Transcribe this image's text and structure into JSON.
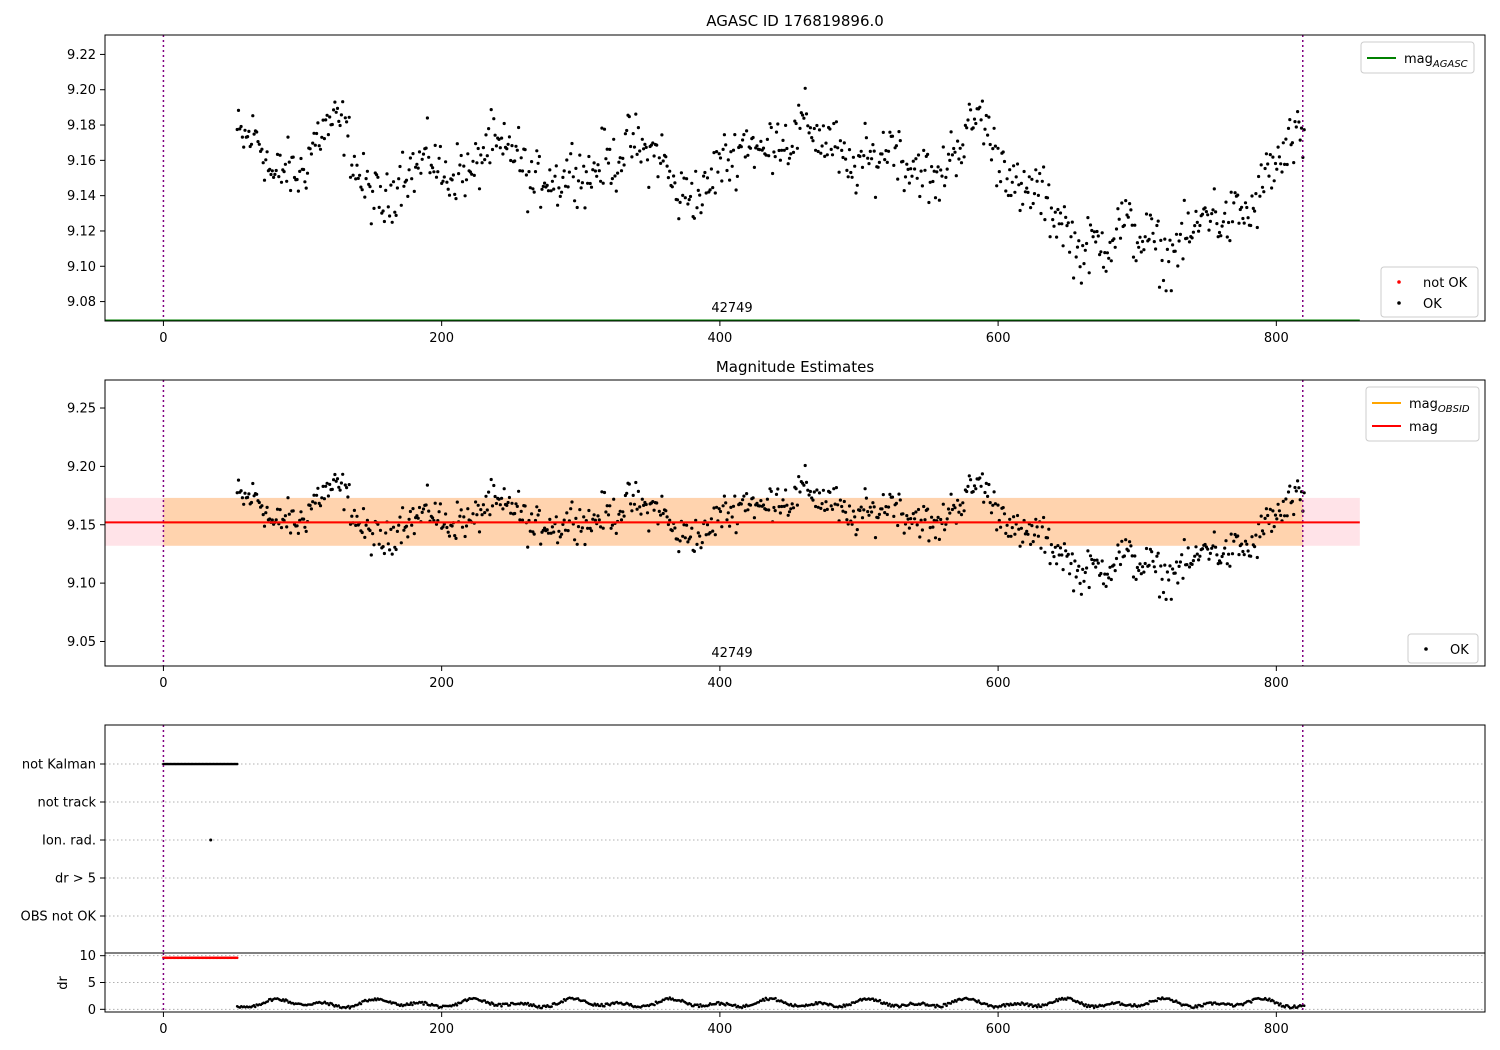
{
  "chart_data": [
    {
      "type": "scatter",
      "title": "AGASC ID 176819896.0",
      "xlim": [
        -42,
        950
      ],
      "ylim": [
        9.069,
        9.231
      ],
      "x_ticks": [
        "0",
        "200",
        "400",
        "600",
        "800"
      ],
      "x_tick_values": [
        0,
        200,
        400,
        600,
        800
      ],
      "y_ticks": [
        "9.08",
        "9.10",
        "9.12",
        "9.14",
        "9.16",
        "9.18",
        "9.20",
        "9.22"
      ],
      "y_tick_values": [
        9.08,
        9.1,
        9.12,
        9.14,
        9.16,
        9.18,
        9.2,
        9.22
      ],
      "obsid_label": "42749",
      "obsid_boundaries": [
        0,
        819
      ],
      "lines": [
        {
          "name": "mag",
          "subscript": "AGASC",
          "color": "#008000",
          "y": 9.069,
          "x_range": [
            -42,
            860
          ]
        }
      ],
      "legend_lines": [
        {
          "name": "mag",
          "subscript": "AGASC",
          "color": "#008000"
        }
      ],
      "legend_points": [
        {
          "name": "not OK",
          "color": "#ff0000"
        },
        {
          "name": "OK",
          "color": "#000000"
        }
      ],
      "series": [
        {
          "name": "OK",
          "color": "#000000",
          "x_range": [
            53,
            820
          ],
          "n_points": 820,
          "trend_x": [
            53,
            80,
            120,
            150,
            200,
            250,
            300,
            330,
            370,
            400,
            440,
            500,
            560,
            590,
            620,
            650,
            700,
            730,
            760,
            790,
            820
          ],
          "trend_y": [
            9.18,
            9.148,
            9.18,
            9.142,
            9.157,
            9.162,
            9.145,
            9.174,
            9.144,
            9.152,
            9.178,
            9.162,
            9.156,
            9.18,
            9.143,
            9.117,
            9.115,
            9.114,
            9.125,
            9.145,
            9.168
          ]
        }
      ]
    },
    {
      "type": "scatter",
      "title": "Magnitude Estimates",
      "xlim": [
        -42,
        950
      ],
      "ylim": [
        9.029,
        9.274
      ],
      "x_ticks": [
        "0",
        "200",
        "400",
        "600",
        "800"
      ],
      "x_tick_values": [
        0,
        200,
        400,
        600,
        800
      ],
      "y_ticks": [
        "9.05",
        "9.10",
        "9.15",
        "9.20",
        "9.25"
      ],
      "y_tick_values": [
        9.05,
        9.1,
        9.15,
        9.2,
        9.25
      ],
      "obsid_label": "42749",
      "obsid_boundaries": [
        0,
        819
      ],
      "mag": 9.152,
      "mag_band": [
        9.132,
        9.173
      ],
      "mag_obsid": 9.152,
      "mag_obsid_band": [
        9.132,
        9.173
      ],
      "colors": {
        "mag": "#ff0000",
        "mag_obsid": "#ffa500",
        "mag_band": "#ffc0cb"
      },
      "legend_lines": [
        {
          "name": "mag",
          "subscript": "OBSID",
          "color": "#ffa500"
        },
        {
          "name": "mag",
          "subscript": "",
          "color": "#ff0000"
        }
      ],
      "legend_points": [
        {
          "name": "OK",
          "color": "#000000"
        }
      ],
      "series": [
        {
          "name": "OK",
          "color": "#000000",
          "x_range": [
            53,
            820
          ],
          "n_points": 820,
          "trend_x": [
            53,
            80,
            120,
            150,
            200,
            250,
            300,
            330,
            370,
            400,
            440,
            500,
            560,
            590,
            620,
            650,
            700,
            730,
            760,
            790,
            820
          ],
          "trend_y": [
            9.18,
            9.148,
            9.18,
            9.142,
            9.157,
            9.162,
            9.145,
            9.174,
            9.144,
            9.152,
            9.178,
            9.162,
            9.156,
            9.18,
            9.143,
            9.117,
            9.115,
            9.114,
            9.125,
            9.145,
            9.168
          ]
        }
      ]
    },
    {
      "type": "scatter",
      "title": "",
      "xlim": [
        -42,
        950
      ],
      "categories": [
        "not Kalman",
        "not track",
        "Ion. rad.",
        "dr > 5",
        "OBS not OK"
      ],
      "flags": {
        "not Kalman": {
          "x_range": [
            0,
            53
          ],
          "color": "#000000"
        },
        "not track": null,
        "Ion. rad.": {
          "x": [
            34
          ],
          "color": "#000000"
        },
        "dr > 5": null,
        "OBS not OK": null
      }
    },
    {
      "type": "scatter",
      "title": "",
      "ylabel": "dr",
      "xlim": [
        -42,
        950
      ],
      "ylim": [
        -0.5,
        10.5
      ],
      "x_ticks": [
        "0",
        "200",
        "400",
        "600",
        "800"
      ],
      "x_tick_values": [
        0,
        200,
        400,
        600,
        800
      ],
      "y_ticks": [
        "0",
        "5",
        "10"
      ],
      "y_tick_values": [
        0,
        5,
        10
      ],
      "series": [
        {
          "name": "dr > 5",
          "color": "#ff0000",
          "x_range": [
            0,
            53
          ],
          "y": 9.6
        },
        {
          "name": "dr",
          "color": "#000000",
          "x_range": [
            53,
            820
          ],
          "trend_y_range": [
            0.0,
            2.6
          ]
        }
      ]
    }
  ]
}
